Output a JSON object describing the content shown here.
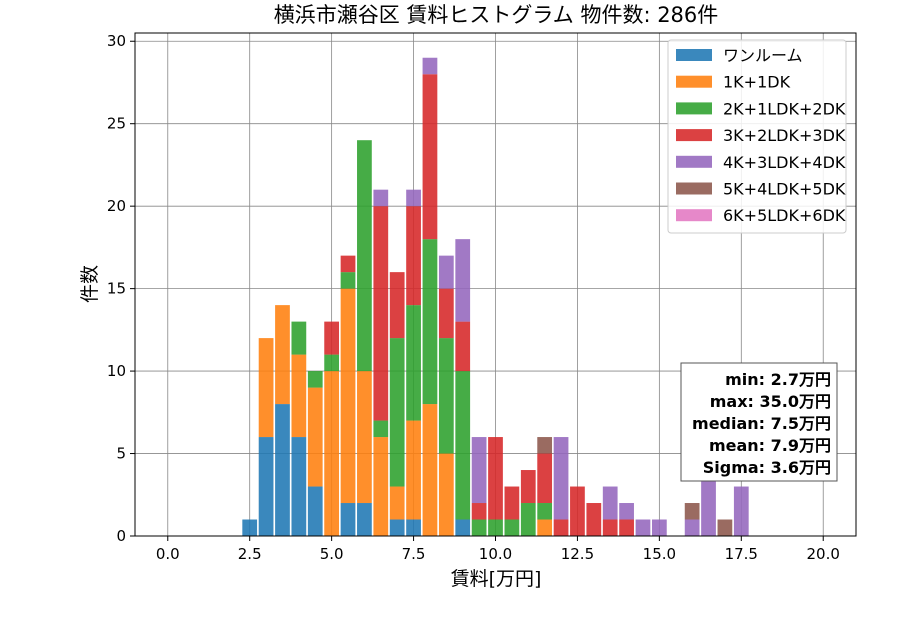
{
  "chart_data": {
    "type": "bar",
    "stacked": true,
    "title": "横浜市瀬谷区 賃料ヒストグラム 物件数: 286件",
    "xlabel": "賃料[万円]",
    "ylabel": "件数",
    "xlim": [
      -1,
      21
    ],
    "ylim": [
      0,
      30.5
    ],
    "xticks": [
      "0.0",
      "2.5",
      "5.0",
      "7.5",
      "10.0",
      "12.5",
      "15.0",
      "17.5",
      "20.0"
    ],
    "yticks": [
      "0",
      "5",
      "10",
      "15",
      "20",
      "25",
      "30"
    ],
    "grid": true,
    "legend_position": "top-right",
    "bin_width": 0.5,
    "bins": [
      2.5,
      3.0,
      3.5,
      4.0,
      4.5,
      5.0,
      5.5,
      6.0,
      6.5,
      7.0,
      7.5,
      8.0,
      8.5,
      9.0,
      9.5,
      10.0,
      10.5,
      11.0,
      11.5,
      12.0,
      12.5,
      13.0,
      13.5,
      14.0,
      14.5,
      15.0,
      15.5,
      16.0,
      16.5,
      17.0,
      17.5
    ],
    "series": [
      {
        "name": "ワンルーム",
        "color": "#1f77b4",
        "values": [
          1,
          6,
          8,
          6,
          3,
          0,
          2,
          2,
          0,
          1,
          1,
          0,
          0,
          1,
          0,
          0,
          0,
          0,
          0,
          0,
          0,
          0,
          0,
          0,
          0,
          0,
          0,
          0,
          0,
          0,
          0
        ]
      },
      {
        "name": "1K+1DK",
        "color": "#ff7f0e",
        "values": [
          0,
          6,
          6,
          5,
          6,
          10,
          13,
          8,
          6,
          2,
          6,
          8,
          5,
          0,
          0,
          0,
          0,
          0,
          1,
          0,
          0,
          0,
          0,
          0,
          0,
          0,
          0,
          0,
          0,
          0,
          0
        ]
      },
      {
        "name": "2K+1LDK+2DK",
        "color": "#2ca02c",
        "values": [
          0,
          0,
          0,
          2,
          1,
          1,
          1,
          14,
          1,
          9,
          7,
          10,
          7,
          9,
          1,
          1,
          1,
          2,
          1,
          0,
          0,
          0,
          0,
          0,
          0,
          0,
          0,
          0,
          0,
          0,
          0
        ]
      },
      {
        "name": "3K+2LDK+3DK",
        "color": "#d62728",
        "values": [
          0,
          0,
          0,
          0,
          0,
          2,
          1,
          0,
          13,
          4,
          6,
          10,
          3,
          3,
          1,
          5,
          2,
          2,
          3,
          1,
          3,
          2,
          1,
          1,
          0,
          0,
          0,
          0,
          0,
          0,
          0
        ]
      },
      {
        "name": "4K+3LDK+4DK",
        "color": "#9467bd",
        "values": [
          0,
          0,
          0,
          0,
          0,
          0,
          0,
          0,
          1,
          0,
          1,
          1,
          2,
          5,
          4,
          0,
          0,
          0,
          0,
          5,
          0,
          0,
          2,
          1,
          1,
          1,
          0,
          1,
          4,
          0,
          3
        ]
      },
      {
        "name": "5K+4LDK+5DK",
        "color": "#8c564b",
        "values": [
          0,
          0,
          0,
          0,
          0,
          0,
          0,
          0,
          0,
          0,
          0,
          0,
          0,
          0,
          0,
          0,
          0,
          0,
          1,
          0,
          0,
          0,
          0,
          0,
          0,
          0,
          0,
          1,
          0,
          1,
          0
        ]
      },
      {
        "name": "6K+5LDK+6DK",
        "color": "#e377c2",
        "values": [
          0,
          0,
          0,
          0,
          0,
          0,
          0,
          0,
          0,
          0,
          0,
          0,
          0,
          0,
          0,
          0,
          0,
          0,
          0,
          0,
          0,
          0,
          0,
          0,
          0,
          0,
          0,
          0,
          0,
          0,
          0
        ]
      }
    ],
    "stats": [
      "min: 2.7万円",
      "max: 35.0万円",
      "median: 7.5万円",
      "mean: 7.9万円",
      "Sigma: 3.6万円"
    ]
  }
}
